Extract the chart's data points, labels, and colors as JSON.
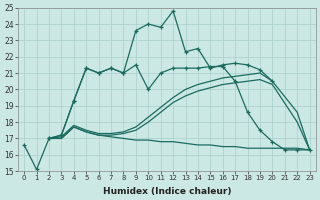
{
  "xlabel": "Humidex (Indice chaleur)",
  "xlim": [
    -0.5,
    23.5
  ],
  "ylim": [
    15,
    25
  ],
  "xticks": [
    0,
    1,
    2,
    3,
    4,
    5,
    6,
    7,
    8,
    9,
    10,
    11,
    12,
    13,
    14,
    15,
    16,
    17,
    18,
    19,
    20,
    21,
    22,
    23
  ],
  "yticks": [
    15,
    16,
    17,
    18,
    19,
    20,
    21,
    22,
    23,
    24,
    25
  ],
  "bg_color": "#cce8e4",
  "line_color": "#1a6b5e",
  "grid_color": "#aacfcb",
  "line1_x": [
    0,
    1,
    2,
    3,
    4,
    5,
    6,
    7,
    8,
    9,
    10,
    11,
    12,
    13,
    14,
    15,
    16,
    17,
    18,
    19,
    20
  ],
  "line1_y": [
    16.6,
    15.1,
    17.0,
    17.2,
    19.3,
    21.3,
    21.0,
    21.3,
    21.0,
    23.6,
    24.0,
    23.8,
    24.8,
    22.3,
    22.5,
    21.3,
    21.5,
    21.6,
    21.5,
    21.2,
    20.5
  ],
  "line2_x": [
    2,
    3,
    4,
    5,
    6,
    7,
    8,
    9,
    10,
    11,
    12,
    13,
    14,
    15,
    16,
    17,
    18,
    19,
    20,
    21,
    22,
    23
  ],
  "line2_y": [
    17.0,
    17.2,
    19.3,
    21.3,
    21.0,
    21.3,
    21.0,
    21.5,
    20.0,
    21.0,
    21.3,
    21.3,
    21.3,
    21.4,
    21.4,
    20.5,
    18.6,
    17.5,
    16.8,
    16.3,
    16.3,
    16.3
  ],
  "line3_x": [
    2,
    3,
    4,
    5,
    6,
    7,
    8,
    9,
    10,
    11,
    12,
    13,
    14,
    15,
    16,
    17,
    18,
    19,
    20,
    22,
    23
  ],
  "line3_y": [
    17.0,
    17.1,
    17.8,
    17.5,
    17.3,
    17.3,
    17.4,
    17.7,
    18.3,
    18.9,
    19.5,
    20.0,
    20.3,
    20.5,
    20.7,
    20.8,
    20.9,
    21.0,
    20.5,
    18.6,
    16.3
  ],
  "line4_x": [
    2,
    3,
    4,
    5,
    6,
    7,
    8,
    9,
    10,
    11,
    12,
    13,
    14,
    15,
    16,
    17,
    18,
    19,
    20,
    22,
    23
  ],
  "line4_y": [
    17.0,
    17.0,
    17.7,
    17.4,
    17.2,
    17.1,
    17.0,
    16.9,
    16.9,
    16.8,
    16.8,
    16.7,
    16.6,
    16.6,
    16.5,
    16.5,
    16.4,
    16.4,
    16.4,
    16.4,
    16.3
  ],
  "line5_x": [
    2,
    3,
    4,
    5,
    6,
    7,
    8,
    9,
    10,
    11,
    12,
    13,
    14,
    15,
    16,
    17,
    18,
    19,
    20,
    22,
    23
  ],
  "line5_y": [
    17.0,
    17.0,
    17.7,
    17.4,
    17.2,
    17.2,
    17.3,
    17.5,
    18.0,
    18.6,
    19.2,
    19.6,
    19.9,
    20.1,
    20.3,
    20.4,
    20.5,
    20.6,
    20.3,
    18.0,
    16.3
  ]
}
